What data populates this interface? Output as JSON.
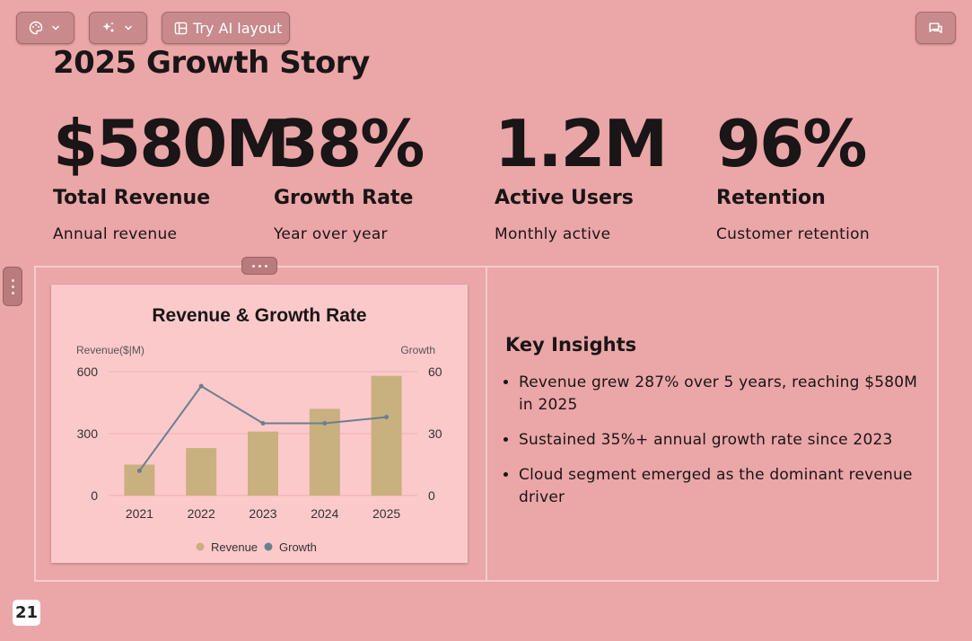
{
  "toolbar": {
    "theme_icon": "palette-icon",
    "ai_icon": "sparkle-icon",
    "ai_layout_label": "Try AI layout",
    "comment_icon": "chat-icon"
  },
  "slide": {
    "title": "2025 Growth Story",
    "stats": [
      {
        "value": "$580M",
        "label": "Total Revenue",
        "sub": "Annual revenue"
      },
      {
        "value": "38%",
        "label": "Growth Rate",
        "sub": "Year over year"
      },
      {
        "value": "1.2M",
        "label": "Active Users",
        "sub": "Monthly active"
      },
      {
        "value": "96%",
        "label": "Retention",
        "sub": "Customer retention"
      }
    ],
    "insights": {
      "title": "Key Insights",
      "items": [
        "Revenue grew 287% over 5 years, reaching $580M in 2025",
        "Sustained 35%+ annual growth rate since 2023",
        "Cloud segment emerged as the dominant revenue driver"
      ]
    },
    "page_number": "21"
  },
  "chart_data": {
    "type": "bar",
    "title": "Revenue & Growth Rate",
    "categories": [
      "2021",
      "2022",
      "2023",
      "2024",
      "2025"
    ],
    "ylabel": "Revenue($|M)",
    "y2label": "Growth",
    "ylim": [
      0,
      600
    ],
    "y2lim": [
      0,
      60
    ],
    "yticks": [
      "0",
      "300",
      "600"
    ],
    "y2ticks": [
      "0",
      "30",
      "60"
    ],
    "series": [
      {
        "name": "Revenue",
        "type": "bar",
        "axis": "left",
        "color": "#c9b07f",
        "values": [
          150,
          230,
          310,
          420,
          580
        ]
      },
      {
        "name": "Growth",
        "type": "line",
        "axis": "right",
        "color": "#6b7f8f",
        "values": [
          12,
          53,
          35,
          35,
          38
        ]
      }
    ],
    "legend": "bottom",
    "grid": true
  }
}
